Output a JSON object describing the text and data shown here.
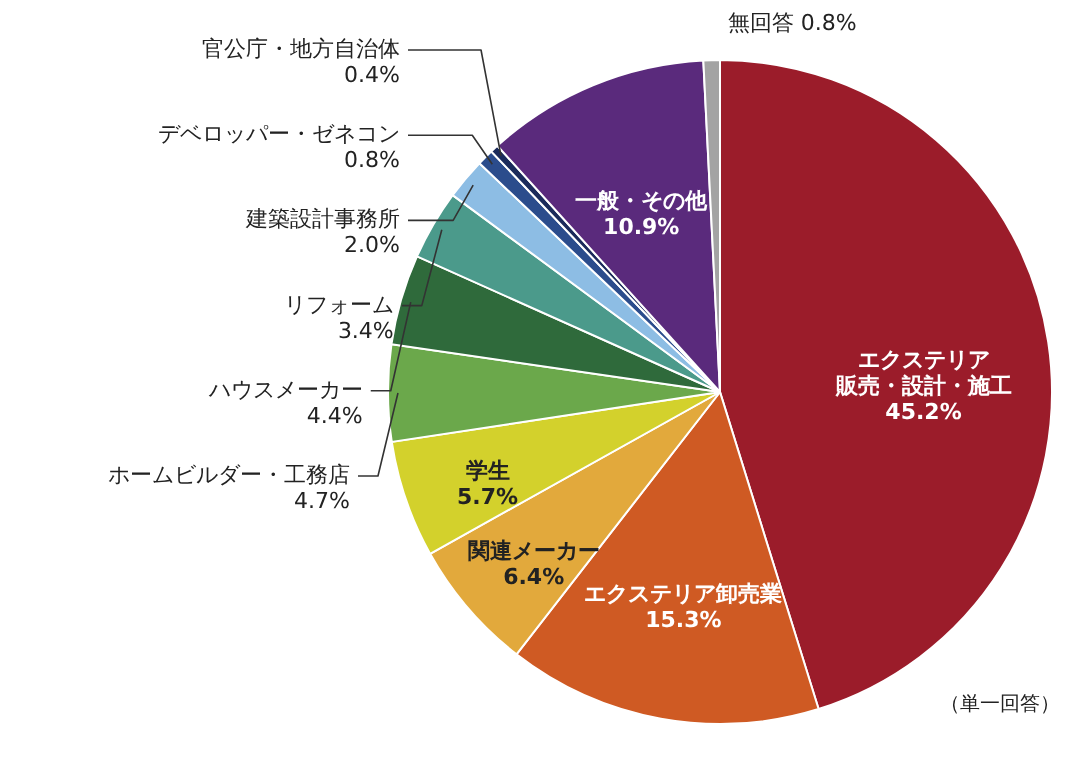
{
  "chart_data": {
    "type": "pie",
    "categories": [
      "エクステリア販売・設計・施工",
      "エクステリア卸売業",
      "関連メーカー",
      "学生",
      "ホームビルダー・工務店",
      "ハウスメーカー",
      "リフォーム",
      "建築設計事務所",
      "デベロッパー・ゼネコン",
      "官公庁・地方自治体",
      "一般・その他",
      "無回答"
    ],
    "values": [
      45.2,
      15.3,
      6.4,
      5.7,
      4.7,
      4.4,
      3.4,
      2.0,
      0.8,
      0.4,
      10.9,
      0.8
    ],
    "value_labels": [
      "45.2%",
      "15.3%",
      "6.4%",
      "5.7%",
      "4.7%",
      "4.4%",
      "3.4%",
      "2.0%",
      "0.8%",
      "0.4%",
      "10.9%",
      "0.8%"
    ],
    "colors": [
      "#9b1c2a",
      "#cf5a23",
      "#e2a93c",
      "#d3d12c",
      "#6ba84b",
      "#2f6a3b",
      "#4b9a8b",
      "#8dbde4",
      "#2b4c8c",
      "#1b2b5b",
      "#5a2a7c",
      "#a3a3a3"
    ],
    "annotations": [
      "（単一回答）"
    ]
  }
}
